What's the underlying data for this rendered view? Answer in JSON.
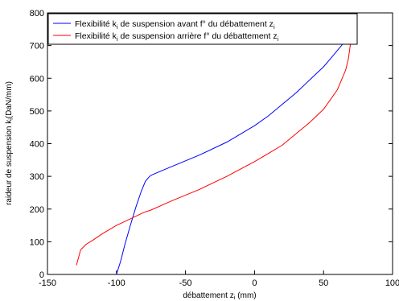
{
  "chart_data": {
    "type": "line",
    "title": "",
    "xlabel": "débattement z",
    "xlabel_sub": "i",
    "xlabel_unit": "(mm)",
    "ylabel": "raideur de suspension k",
    "ylabel_sub": "i",
    "ylabel_unit": "(DaN/mm)",
    "xlim": [
      -150,
      100
    ],
    "ylim": [
      0,
      800
    ],
    "xticks": [
      -150,
      -100,
      -50,
      0,
      50,
      100
    ],
    "yticks": [
      0,
      100,
      200,
      300,
      400,
      500,
      600,
      700,
      800
    ],
    "grid": false,
    "legend_position": "top-left",
    "series": [
      {
        "name": {
          "pre": "Flexibilité k",
          "sub1": "i",
          "mid": " de suspension avant f° du débattement z",
          "sub2": "i"
        },
        "color": "#0000ff",
        "x": [
          -100,
          -97,
          -94,
          -90,
          -86,
          -82,
          -79,
          -76,
          -74,
          -60,
          -40,
          -20,
          0,
          10,
          20,
          30,
          40,
          50,
          55,
          60,
          63,
          66,
          68,
          70
        ],
        "y": [
          0,
          40,
          90,
          150,
          205,
          255,
          285,
          300,
          305,
          330,
          365,
          405,
          455,
          485,
          520,
          555,
          595,
          635,
          660,
          685,
          700,
          715,
          725,
          735
        ]
      },
      {
        "name": {
          "pre": "Flexibilité k",
          "sub1": "i",
          "mid": " de suspension arrière f° du débattement z",
          "sub2": "i"
        },
        "color": "#ff0000",
        "x": [
          -129,
          -126,
          -122,
          -117,
          -110,
          -100,
          -90,
          -80,
          -75,
          -60,
          -40,
          -20,
          0,
          10,
          20,
          30,
          40,
          50,
          55,
          60,
          63,
          66,
          68,
          69,
          70
        ],
        "y": [
          28,
          75,
          92,
          105,
          125,
          150,
          170,
          190,
          197,
          225,
          260,
          300,
          345,
          370,
          395,
          430,
          465,
          505,
          535,
          565,
          595,
          625,
          660,
          690,
          720
        ]
      }
    ]
  }
}
